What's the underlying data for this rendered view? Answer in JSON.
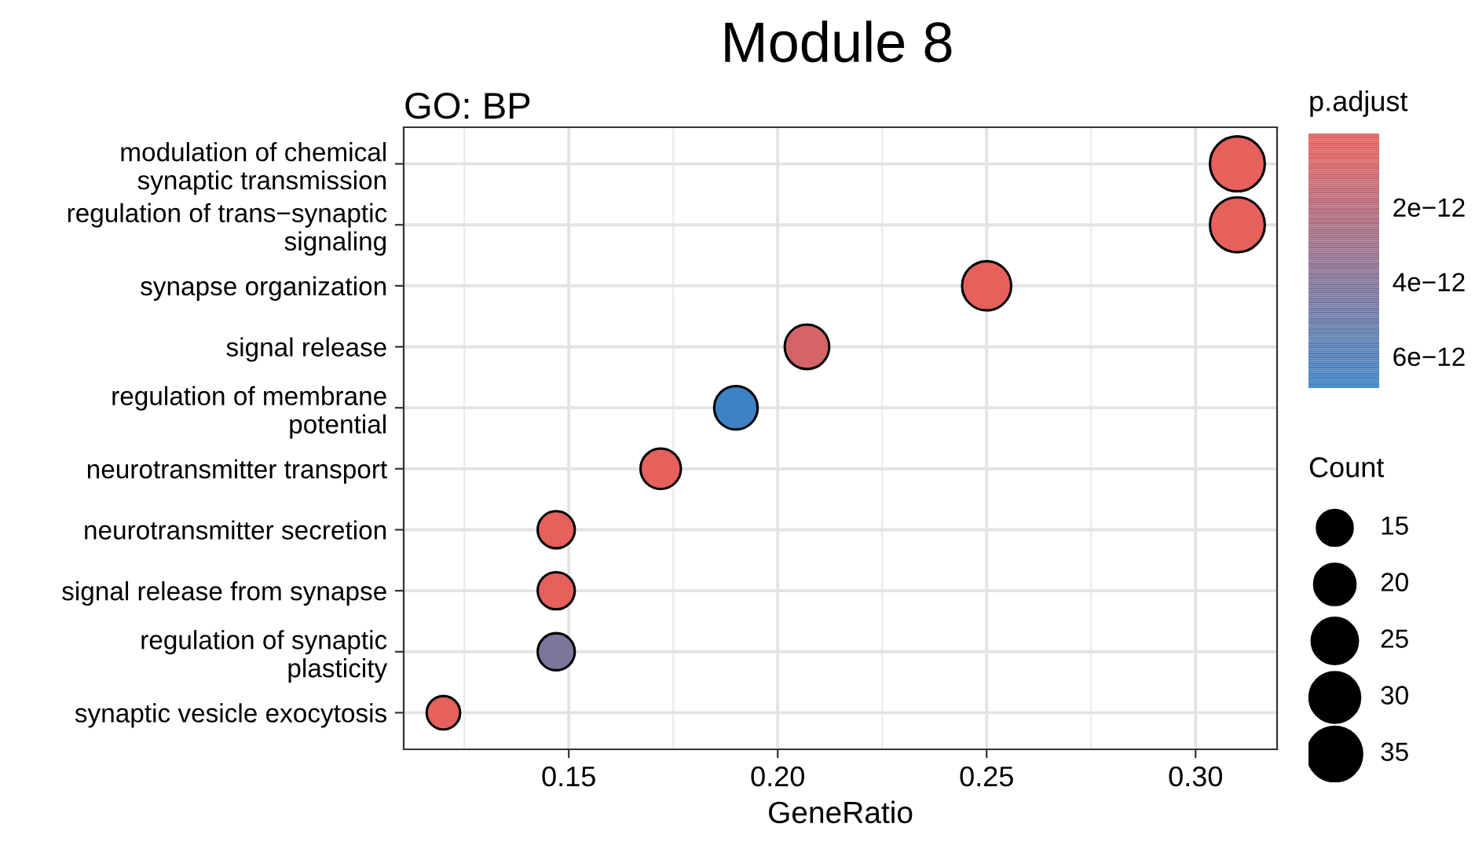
{
  "chart_data": {
    "type": "bubble",
    "title": "Module 8",
    "subtitle": "GO: BP",
    "xlabel": "GeneRatio",
    "clabel": "p.adjust",
    "legend_title": "Count",
    "orientation": "horizontal",
    "categories": [
      "modulation of chemical\nsynaptic transmission",
      "regulation of trans−synaptic\nsignaling",
      "synapse organization",
      "signal release",
      "regulation of membrane\npotential",
      "neurotransmitter transport",
      "neurotransmitter secretion",
      "signal release from synapse",
      "regulation of synaptic\nplasticity",
      "synaptic vesicle exocytosis"
    ],
    "values": [
      0.31,
      0.31,
      0.25,
      0.207,
      0.19,
      0.172,
      0.147,
      0.147,
      0.147,
      0.12
    ],
    "sizes": [
      35,
      35,
      28,
      23,
      22,
      19,
      16,
      16,
      16,
      13
    ],
    "size_legend": [
      15,
      20,
      25,
      30,
      35
    ],
    "cvalues": [
      1e-13,
      1e-13,
      1e-13,
      8e-13,
      6.8e-12,
      1e-13,
      1e-13,
      1e-13,
      4.2e-12,
      1e-13
    ],
    "clim": [
      3e-14,
      6.85e-12
    ],
    "cticks": [
      {
        "value": 2e-12,
        "label": "2e−12"
      },
      {
        "value": 4e-12,
        "label": "4e−12"
      },
      {
        "value": 6e-12,
        "label": "6e−12"
      }
    ],
    "xlim": [
      0.1105,
      0.3195
    ],
    "xticks": [
      {
        "value": 0.15,
        "label": "0.15"
      },
      {
        "value": 0.2,
        "label": "0.20"
      },
      {
        "value": 0.25,
        "label": "0.25"
      },
      {
        "value": 0.3,
        "label": "0.30"
      }
    ],
    "grid": true,
    "marker": "circle"
  }
}
